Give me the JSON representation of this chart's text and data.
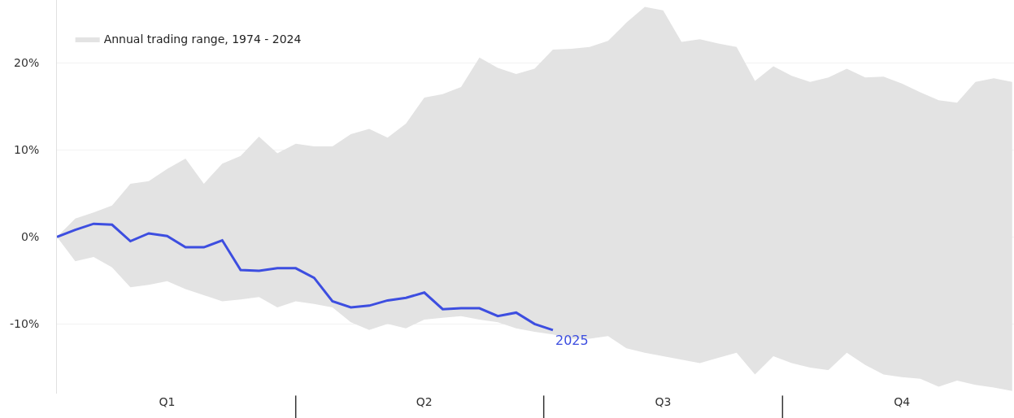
{
  "chart_data": {
    "type": "line",
    "categories": [
      null,
      null,
      null,
      null,
      null,
      null,
      "Q1",
      null,
      null,
      null,
      null,
      null,
      null,
      null,
      null,
      null,
      null,
      null,
      null,
      null,
      "Q2",
      null,
      null,
      null,
      null,
      null,
      null,
      null,
      null,
      null,
      null,
      null,
      null,
      "Q3",
      null,
      null,
      null,
      null,
      null,
      null,
      null,
      null,
      null,
      null,
      null,
      null,
      "Q4",
      null,
      null,
      null,
      null,
      null,
      null
    ],
    "series": [
      {
        "name": "Annual trading range, 1974 - 2024",
        "type": "area",
        "color": "#e3e3e3",
        "values": [
          null,
          null,
          null,
          null,
          null,
          null,
          null,
          null,
          null,
          null,
          null,
          null,
          null,
          null,
          null,
          null,
          null,
          null,
          null,
          null,
          null,
          null,
          null,
          null,
          null,
          null,
          null,
          null,
          null,
          null,
          null,
          null,
          null,
          null,
          null,
          null,
          null,
          null,
          null,
          null,
          null,
          null,
          null,
          null,
          null,
          null,
          null,
          null,
          null,
          null,
          null,
          null,
          null
        ],
        "lower": [
          0,
          -2.8,
          -2.3,
          -3.5,
          -5.8,
          -5.5,
          -5.1,
          -6.0,
          -6.7,
          -7.4,
          -7.2,
          -6.9,
          -8.1,
          -7.4,
          -7.7,
          -8.1,
          -9.8,
          -10.7,
          -10.0,
          -10.5,
          -9.5,
          -9.3,
          -9.1,
          -9.5,
          -9.8,
          -10.5,
          -10.9,
          -11.2,
          -11.7,
          -11.7,
          -11.4,
          -12.8,
          -13.3,
          -13.7,
          -14.1,
          -14.5,
          -13.9,
          -13.3,
          -15.8,
          -13.7,
          -14.5,
          -15.0,
          -15.3,
          -13.3,
          -14.7,
          -15.8,
          -16.1,
          -16.3,
          -17.2,
          -16.5,
          -17.0,
          -17.3,
          -17.7
        ],
        "upper": [
          0,
          2.1,
          2.8,
          3.6,
          6.1,
          6.4,
          7.8,
          9.0,
          6.1,
          8.4,
          9.3,
          11.5,
          9.6,
          10.7,
          10.4,
          10.4,
          11.8,
          12.4,
          11.4,
          13.0,
          16.0,
          16.4,
          17.2,
          20.6,
          19.4,
          18.7,
          19.3,
          21.5,
          21.6,
          21.8,
          22.5,
          24.6,
          26.4,
          26.0,
          22.4,
          22.7,
          22.2,
          21.8,
          17.9,
          19.6,
          18.5,
          17.8,
          18.3,
          19.3,
          18.3,
          18.4,
          17.6,
          16.6,
          15.7,
          15.4,
          17.8,
          18.2,
          17.8
        ]
      },
      {
        "name": "2025",
        "color": "#3d4ee0",
        "values": [
          0,
          0.8,
          1.5,
          1.4,
          -0.5,
          0.4,
          0.1,
          -1.2,
          -1.2,
          -0.4,
          -3.8,
          -3.9,
          -3.6,
          -3.6,
          -4.7,
          -7.4,
          -8.1,
          -7.9,
          -7.3,
          -7.0,
          -6.4,
          -8.3,
          -8.2,
          -8.2,
          -9.1,
          -8.7,
          -10.0,
          -10.7,
          null,
          null,
          null,
          null,
          null,
          null,
          null,
          null,
          null,
          null,
          null,
          null,
          null,
          null,
          null,
          null,
          null,
          null,
          null,
          null,
          null,
          null,
          null,
          null,
          null
        ]
      }
    ],
    "ylim": [
      -18,
      27.2
    ],
    "yticks": [
      {
        "value": -10,
        "label": "-10%"
      },
      {
        "value": 0,
        "label": "0%"
      },
      {
        "value": 10,
        "label": "10%"
      },
      {
        "value": 20,
        "label": "20%"
      }
    ],
    "grid": "y",
    "legend": "top left"
  }
}
